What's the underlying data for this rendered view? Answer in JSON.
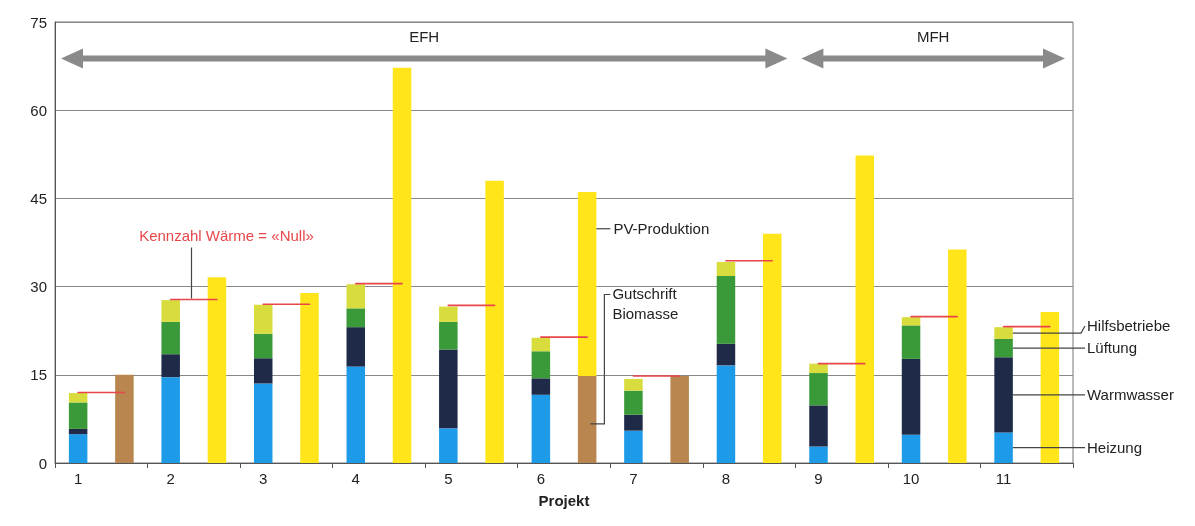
{
  "chart_data": {
    "type": "bar",
    "stacked": true,
    "xlabel": "Projekt",
    "categories": [
      "1",
      null,
      "2",
      null,
      "3",
      null,
      "4",
      null,
      "5",
      null,
      "6",
      null,
      "7",
      null,
      "8",
      null,
      "9",
      null,
      "10",
      null,
      "11",
      null
    ],
    "series": [
      {
        "name": "Heizung",
        "color": "#1e9be8",
        "values": [
          4.9,
          null,
          14.6,
          null,
          13.5,
          null,
          16.4,
          null,
          5.9,
          null,
          11.6,
          null,
          5.5,
          null,
          16.6,
          null,
          2.8,
          null,
          4.8,
          null,
          5.2,
          null
        ]
      },
      {
        "name": "Warmwasser",
        "color": "#1f2a48",
        "values": [
          0.9,
          null,
          3.9,
          null,
          4.3,
          null,
          6.7,
          null,
          13.4,
          null,
          2.8,
          null,
          2.7,
          null,
          3.7,
          null,
          7.0,
          null,
          12.9,
          null,
          12.8,
          null
        ]
      },
      {
        "name": "Lüftung",
        "color": "#3a9a3a",
        "values": [
          4.5,
          null,
          5.5,
          null,
          4.2,
          null,
          3.2,
          null,
          4.7,
          null,
          4.6,
          null,
          4.1,
          null,
          11.5,
          null,
          5.5,
          null,
          5.7,
          null,
          3.1,
          null
        ]
      },
      {
        "name": "Hilfsbetriebe",
        "color": "#d8dc3c",
        "values": [
          1.6,
          null,
          3.7,
          null,
          4.9,
          null,
          4.1,
          null,
          2.6,
          null,
          2.3,
          null,
          2.0,
          null,
          2.4,
          null,
          1.6,
          null,
          1.4,
          null,
          2.0,
          null
        ]
      },
      {
        "name": "Gutschrift Biomasse",
        "color": "#b8864e",
        "values": [
          null,
          15,
          null,
          null,
          null,
          null,
          null,
          null,
          null,
          null,
          null,
          14.8,
          null,
          14.8,
          null,
          null,
          null,
          null,
          null,
          null,
          null,
          null
        ]
      },
      {
        "name": "PV-Produktion",
        "color": "#ffe51a",
        "values": [
          null,
          null,
          null,
          31.6,
          null,
          28.9,
          null,
          67.2,
          null,
          48.0,
          null,
          31.3,
          null,
          null,
          null,
          39.0,
          null,
          52.3,
          null,
          36.3,
          null,
          25.7
        ]
      },
      {
        "type": "line",
        "color": "#e8464a",
        "values": [
          12.0,
          12.0,
          null,
          null,
          null,
          null,
          null,
          null,
          null,
          null,
          null,
          null,
          null,
          null,
          null,
          null,
          null,
          null,
          null,
          null,
          null,
          null
        ]
      },
      {
        "name": "Kennzahl Wärme = «Null»",
        "type": "line",
        "color": "#e8464a",
        "values": [
          null,
          null,
          27.8,
          27.8,
          null,
          null,
          null,
          null,
          null,
          null,
          null,
          null,
          null,
          null,
          null,
          null,
          null,
          null,
          null,
          null,
          null,
          null
        ]
      },
      {
        "type": "line",
        "color": "#e8464a",
        "values": [
          null,
          null,
          null,
          null,
          27.0,
          27.0,
          null,
          null,
          null,
          null,
          null,
          null,
          null,
          null,
          null,
          null,
          null,
          null,
          null,
          null,
          null,
          null
        ]
      },
      {
        "type": "line",
        "color": "#e8464a",
        "values": [
          null,
          null,
          null,
          null,
          null,
          null,
          30.5,
          30.5,
          null,
          null,
          null,
          null,
          null,
          null,
          null,
          null,
          null,
          null,
          null,
          null,
          null,
          null
        ]
      },
      {
        "type": "line",
        "color": "#e8464a",
        "values": [
          null,
          null,
          null,
          null,
          null,
          null,
          null,
          null,
          26.8,
          26.8,
          null,
          null,
          null,
          null,
          null,
          null,
          null,
          null,
          null,
          null,
          null,
          null
        ]
      },
      {
        "type": "line",
        "color": "#e8464a",
        "values": [
          null,
          null,
          null,
          null,
          null,
          null,
          null,
          null,
          null,
          null,
          21.4,
          21.4,
          null,
          null,
          null,
          null,
          null,
          null,
          null,
          null,
          null,
          null
        ]
      },
      {
        "type": "line",
        "color": "#e8464a",
        "values": [
          null,
          null,
          null,
          null,
          null,
          null,
          null,
          null,
          null,
          null,
          null,
          null,
          14.8,
          14.8,
          null,
          null,
          null,
          null,
          null,
          null,
          null,
          null
        ]
      },
      {
        "type": "line",
        "color": "#e8464a",
        "values": [
          null,
          null,
          null,
          null,
          null,
          null,
          null,
          null,
          null,
          null,
          null,
          null,
          null,
          null,
          34.4,
          34.4,
          null,
          null,
          null,
          null,
          null,
          null
        ]
      },
      {
        "type": "line",
        "color": "#e8464a",
        "values": [
          null,
          null,
          null,
          null,
          null,
          null,
          null,
          null,
          null,
          null,
          null,
          null,
          null,
          null,
          null,
          null,
          16.9,
          16.9,
          null,
          null,
          null,
          null
        ]
      },
      {
        "type": "line",
        "color": "#e8464a",
        "values": [
          null,
          null,
          null,
          null,
          null,
          null,
          null,
          null,
          null,
          null,
          null,
          null,
          null,
          null,
          null,
          null,
          null,
          null,
          24.9,
          24.9,
          null,
          null
        ]
      },
      {
        "type": "line",
        "color": "#e8464a",
        "values": [
          null,
          null,
          null,
          null,
          null,
          null,
          null,
          null,
          null,
          null,
          null,
          null,
          null,
          null,
          null,
          null,
          null,
          null,
          null,
          null,
          23.2,
          23.2
        ]
      }
    ],
    "ylim": [
      0,
      75
    ],
    "yticks": [
      0,
      15,
      30,
      45,
      60,
      75
    ],
    "grid": "y",
    "legend": false,
    "line_style": "solid",
    "annotations": [
      "EFH",
      "MFH"
    ]
  }
}
